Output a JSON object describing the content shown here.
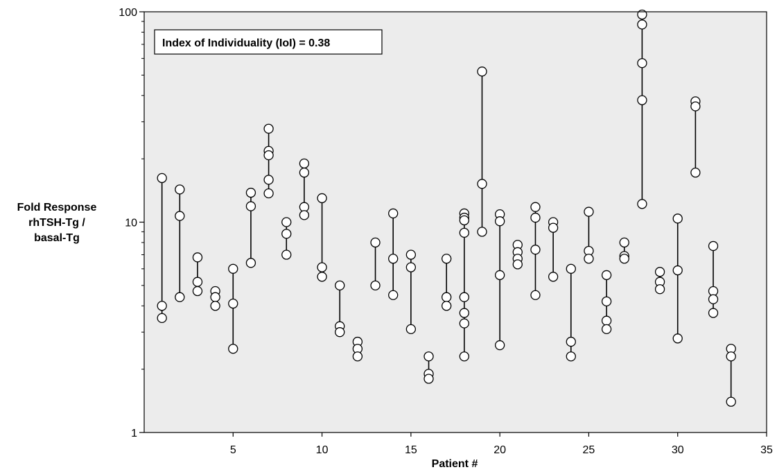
{
  "chart_data": {
    "type": "scatter",
    "title": "",
    "xlabel": "Patient #",
    "ylabel_lines": [
      "Fold Response",
      "rhTSH-Tg /",
      "basal-Tg"
    ],
    "annotation": "Index of Individuality (IoI) = 0.38",
    "xlim": [
      0,
      35
    ],
    "ylim": [
      1,
      100
    ],
    "yscale": "log",
    "xticks": [
      5,
      10,
      15,
      20,
      25,
      30,
      35
    ],
    "yticks": [
      1,
      10,
      100
    ],
    "grid": false,
    "legend": "none",
    "plot_background": "#ececec",
    "marker_color": "#ffffff",
    "line_color": "#000000",
    "patients": [
      {
        "x": 1,
        "values": [
          16.2,
          4.0,
          3.5
        ]
      },
      {
        "x": 2,
        "values": [
          14.3,
          10.7,
          4.4
        ]
      },
      {
        "x": 3,
        "values": [
          6.8,
          5.2,
          4.7
        ]
      },
      {
        "x": 4,
        "values": [
          4.7,
          4.4,
          4.0
        ]
      },
      {
        "x": 5,
        "values": [
          6.0,
          4.1,
          2.5
        ]
      },
      {
        "x": 6,
        "values": [
          13.8,
          11.9,
          6.4
        ]
      },
      {
        "x": 7,
        "values": [
          27.8,
          21.8,
          20.8,
          15.9,
          13.7
        ]
      },
      {
        "x": 8,
        "values": [
          10.0,
          8.8,
          7.0
        ]
      },
      {
        "x": 9,
        "values": [
          19.0,
          17.2,
          11.8,
          10.8
        ]
      },
      {
        "x": 10,
        "values": [
          13.0,
          6.1,
          5.5
        ]
      },
      {
        "x": 11,
        "values": [
          5.0,
          3.2,
          3.0
        ]
      },
      {
        "x": 12,
        "values": [
          2.7,
          2.5,
          2.3
        ]
      },
      {
        "x": 13,
        "values": [
          8.0,
          5.0
        ]
      },
      {
        "x": 14,
        "values": [
          11.0,
          6.7,
          4.5
        ]
      },
      {
        "x": 15,
        "values": [
          7.0,
          6.1,
          3.1
        ]
      },
      {
        "x": 16,
        "values": [
          2.3,
          1.9,
          1.8
        ]
      },
      {
        "x": 17,
        "values": [
          6.7,
          4.4,
          4.0
        ]
      },
      {
        "x": 18,
        "values": [
          11.0,
          10.5,
          10.2,
          8.9,
          4.4,
          3.7,
          3.3,
          2.3
        ]
      },
      {
        "x": 19,
        "values": [
          52.0,
          15.2,
          9.0
        ]
      },
      {
        "x": 20,
        "values": [
          10.9,
          10.1,
          5.6,
          2.6
        ]
      },
      {
        "x": 21,
        "values": [
          7.8,
          7.2,
          6.7,
          6.3
        ]
      },
      {
        "x": 22,
        "values": [
          11.8,
          10.5,
          7.4,
          4.5
        ]
      },
      {
        "x": 23,
        "values": [
          10.0,
          9.4,
          5.5
        ]
      },
      {
        "x": 24,
        "values": [
          6.0,
          2.7,
          2.3
        ]
      },
      {
        "x": 25,
        "values": [
          11.2,
          7.3,
          6.7
        ]
      },
      {
        "x": 26,
        "values": [
          5.6,
          4.2,
          3.4,
          3.1
        ]
      },
      {
        "x": 27,
        "values": [
          8.0,
          6.9,
          6.7
        ]
      },
      {
        "x": 28,
        "values": [
          97.0,
          87.0,
          57.0,
          38.0,
          12.2
        ]
      },
      {
        "x": 29,
        "values": [
          5.8,
          5.2,
          4.8
        ]
      },
      {
        "x": 30,
        "values": [
          10.4,
          5.9,
          2.8
        ]
      },
      {
        "x": 31,
        "values": [
          37.5,
          35.5,
          17.2
        ]
      },
      {
        "x": 32,
        "values": [
          7.7,
          4.7,
          4.3,
          3.7
        ]
      },
      {
        "x": 33,
        "values": [
          2.5,
          2.3,
          1.4
        ]
      }
    ]
  }
}
